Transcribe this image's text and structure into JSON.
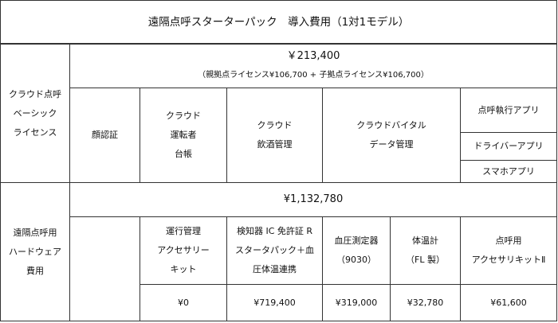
{
  "title": "遠隔点呼スターターパック　導入費用（1対1モデル）",
  "basic": {
    "label": [
      "クラウド点呼",
      "ベーシック",
      "ライセンス"
    ],
    "price": "￥213,400",
    "breakdown": "（親拠点ライセンス¥106,700 +  子拠点ライセンス¥106,700）",
    "items": [
      {
        "lines": [
          "顔認証"
        ]
      },
      {
        "lines": [
          "クラウド",
          "運転者",
          "台帳"
        ]
      },
      {
        "lines": [
          "クラウド",
          "飲酒管理"
        ]
      },
      {
        "lines": [
          "クラウドバイタル",
          "データ管理"
        ]
      }
    ],
    "apps": [
      "点呼執行アプリ",
      "ドライバーアプリ",
      "スマホアプリ"
    ]
  },
  "hardware": {
    "label": [
      "遠隔点呼用",
      "ハードウェア",
      "費用"
    ],
    "price": "¥1,132,780",
    "items": [
      {
        "lines": [
          "運行管理",
          "アクセサリー",
          "キット"
        ],
        "price": "¥0"
      },
      {
        "lines": [
          "検知器 IC 免許証 R",
          "スタータパック＋血",
          "圧体温連携"
        ],
        "price": "¥719,400"
      },
      {
        "lines": [
          "血圧測定器",
          "（9030）"
        ],
        "price": "¥319,000"
      },
      {
        "lines": [
          "体温計",
          "（FL 製）"
        ],
        "price": "¥32,780"
      },
      {
        "lines": [
          "点呼用",
          "アクセサリキットⅡ"
        ],
        "price": "¥61,600"
      }
    ]
  }
}
